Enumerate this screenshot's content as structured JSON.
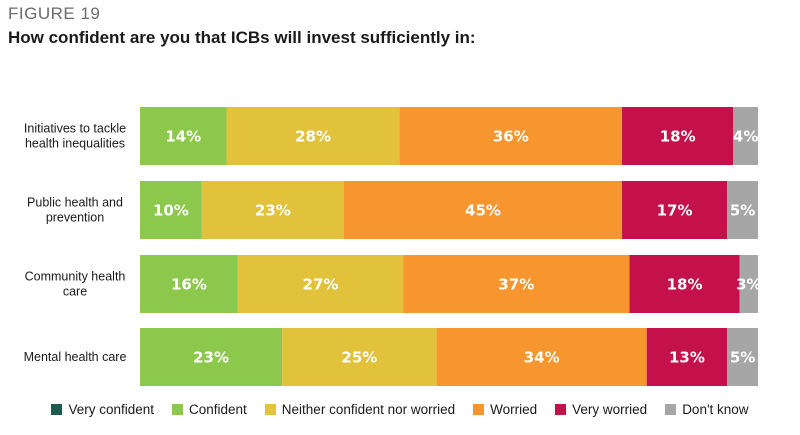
{
  "figure_label": "FIGURE 19",
  "chart_data": {
    "type": "bar",
    "orientation": "horizontal",
    "stacked": true,
    "title": "How confident are you that ICBs will invest sufficiently in:",
    "categories": [
      [
        "Initiatives to tackle",
        "health inequalities"
      ],
      [
        "Public health and",
        "prevention"
      ],
      [
        "Community health",
        "care"
      ],
      [
        "Mental health care"
      ]
    ],
    "series": [
      {
        "name": "Very confident",
        "color": "#1e5b4f",
        "values": [
          0,
          0,
          0,
          0
        ]
      },
      {
        "name": "Confident",
        "color": "#8cc84b",
        "values": [
          14,
          10,
          16,
          23
        ]
      },
      {
        "name": "Neither confident nor worried",
        "color": "#e2c13b",
        "values": [
          28,
          23,
          27,
          25
        ]
      },
      {
        "name": "Worried",
        "color": "#f7962e",
        "values": [
          36,
          45,
          37,
          34
        ]
      },
      {
        "name": "Very worried",
        "color": "#c4104b",
        "values": [
          18,
          17,
          18,
          13
        ]
      },
      {
        "name": "Don't know",
        "color": "#a6a6a6",
        "values": [
          4,
          5,
          3,
          5
        ]
      }
    ],
    "value_suffix": "%",
    "legend_position": "bottom",
    "grid": false
  }
}
